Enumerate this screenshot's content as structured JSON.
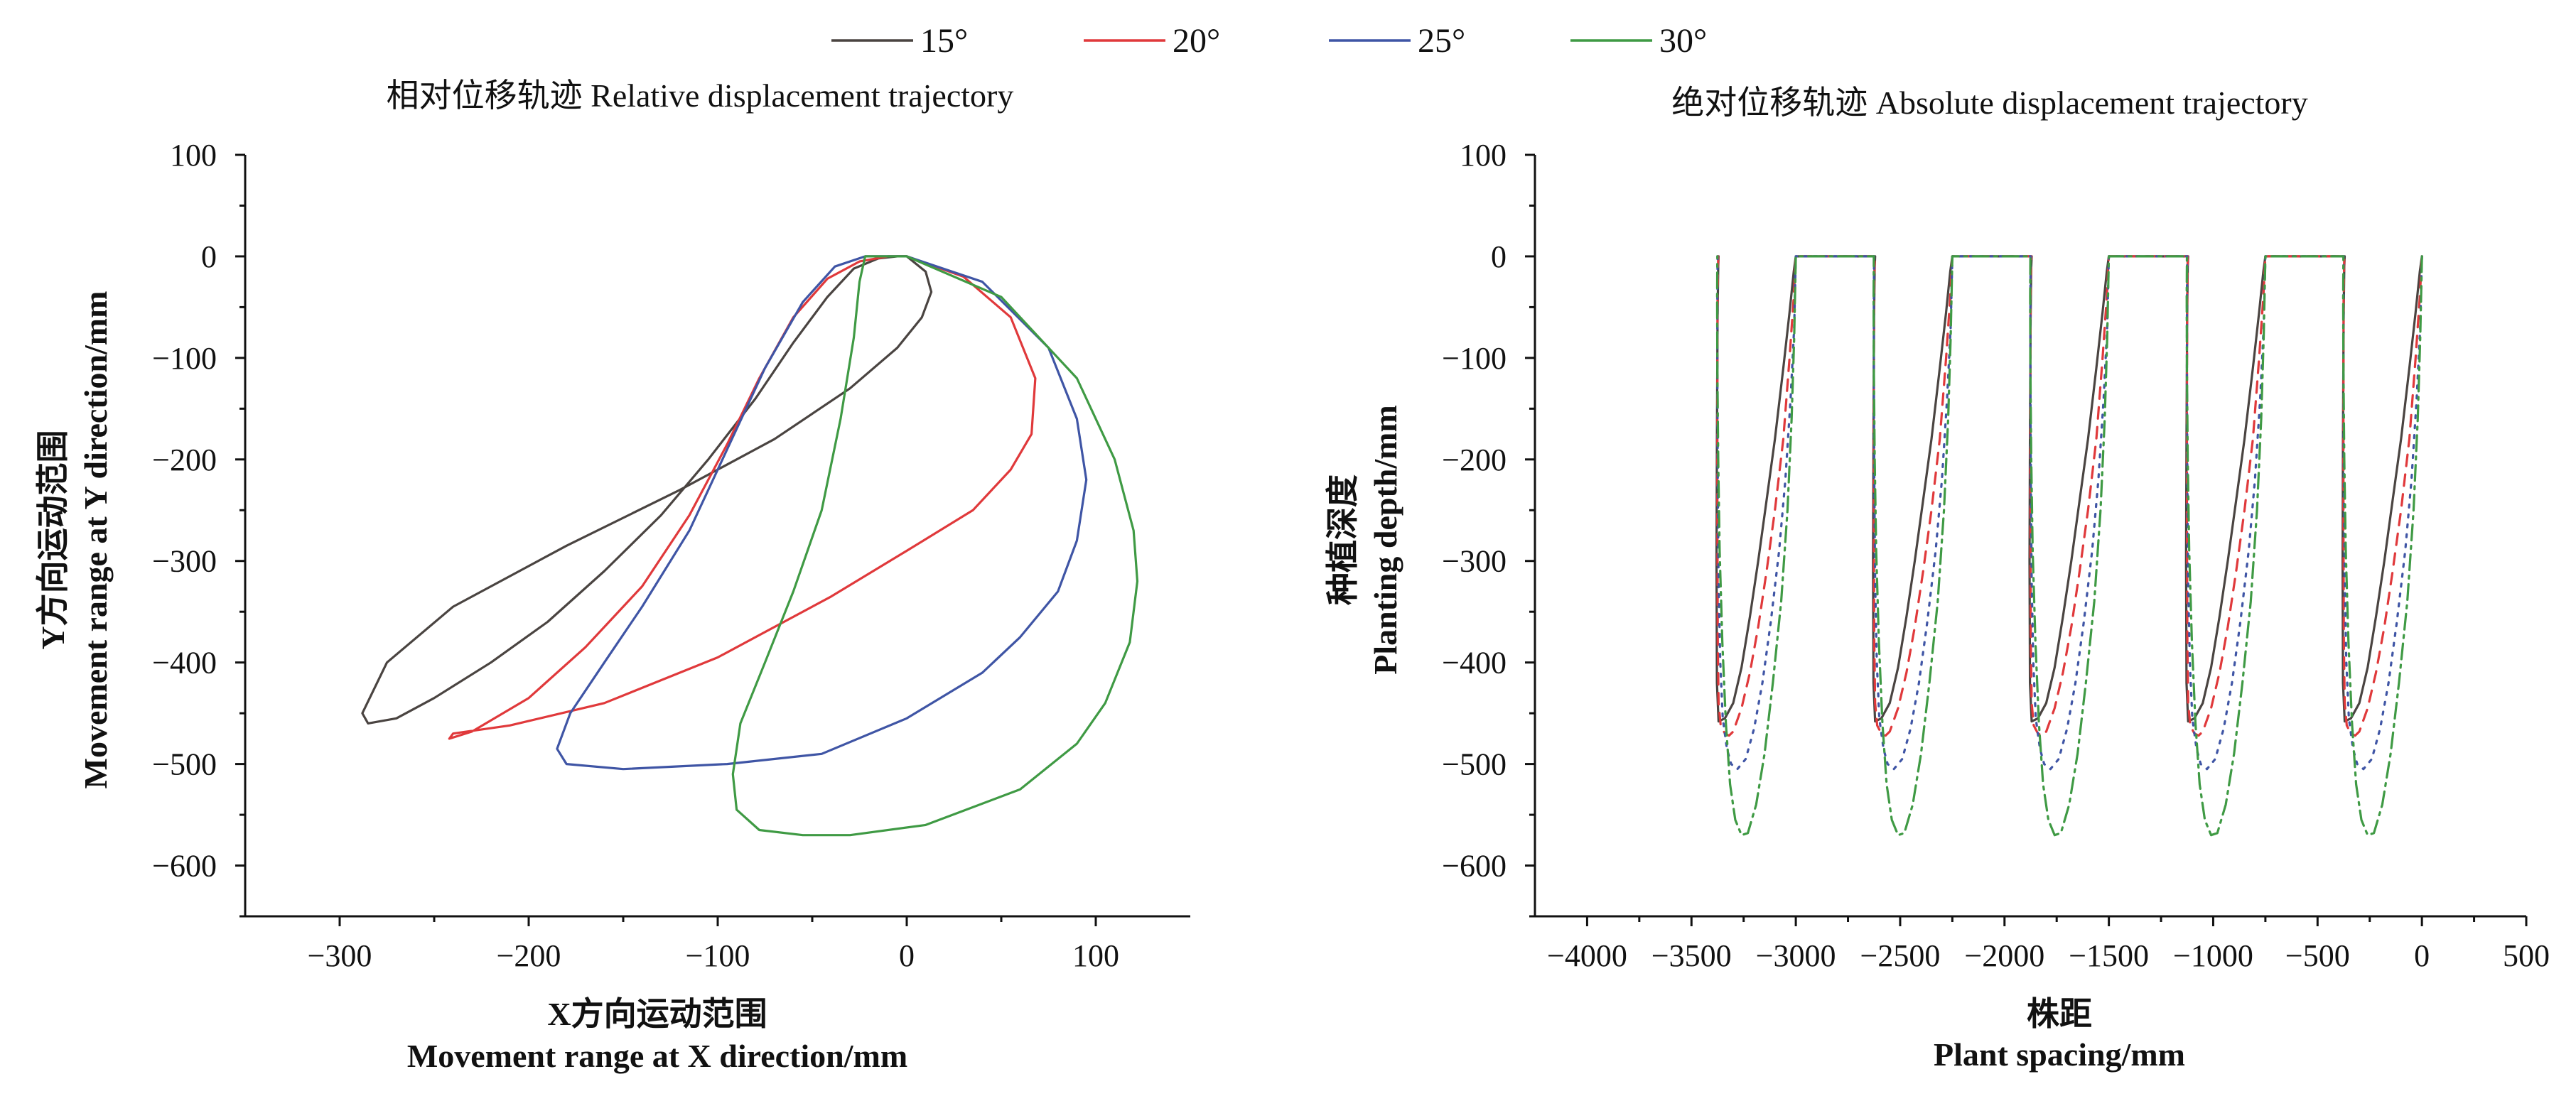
{
  "legend": [
    {
      "name": "15°",
      "color": "#4a4441"
    },
    {
      "name": "20°",
      "color": "#e0393b"
    },
    {
      "name": "25°",
      "color": "#3f55a5"
    },
    {
      "name": "30°",
      "color": "#3f9a44"
    }
  ],
  "chart_data": [
    {
      "type": "line",
      "title": "相对位移轨迹 Relative displacement trajectory",
      "xlabel_cn": "X方向运动范围",
      "xlabel_en": "Movement range at X direction/mm",
      "ylabel_cn": "Y方向运动范围",
      "ylabel_en": "Movement range at Y direction/mm",
      "xlim": [
        -350,
        150
      ],
      "ylim": [
        -650,
        100
      ],
      "xticks": [
        -300,
        -200,
        -100,
        0,
        100
      ],
      "xtick_labels": [
        "−300",
        "−200",
        "−100",
        "0",
        "100"
      ],
      "yticks": [
        100,
        0,
        -100,
        -200,
        -300,
        -400,
        -500,
        -600
      ],
      "ytick_labels": [
        "100",
        "0",
        "−100",
        "−200",
        "−300",
        "−400",
        "−500",
        "−600"
      ],
      "series": [
        {
          "name": "15°",
          "color": "#4a4441",
          "dash": "",
          "x": [
            0,
            10,
            13,
            8,
            -5,
            -30,
            -70,
            -120,
            -180,
            -240,
            -275,
            -288,
            -285,
            -270,
            -250,
            -220,
            -190,
            -160,
            -130,
            -105,
            -80,
            -60,
            -42,
            -28,
            -15,
            -5,
            0
          ],
          "y": [
            0,
            -15,
            -35,
            -60,
            -90,
            -130,
            -180,
            -230,
            -285,
            -345,
            -400,
            -450,
            -460,
            -455,
            -435,
            -400,
            -360,
            -310,
            -255,
            -200,
            -140,
            -85,
            -40,
            -12,
            -2,
            0,
            0
          ]
        },
        {
          "name": "20°",
          "color": "#e0393b",
          "dash": "",
          "x": [
            0,
            30,
            55,
            68,
            66,
            55,
            35,
            0,
            -40,
            -100,
            -160,
            -210,
            -240,
            -242,
            -230,
            -200,
            -170,
            -140,
            -115,
            -95,
            -78,
            -60,
            -42,
            -25,
            -10,
            0
          ],
          "y": [
            0,
            -20,
            -60,
            -120,
            -175,
            -210,
            -250,
            -290,
            -335,
            -395,
            -440,
            -462,
            -470,
            -475,
            -468,
            -435,
            -385,
            -325,
            -255,
            -185,
            -120,
            -60,
            -22,
            -5,
            0,
            0
          ]
        },
        {
          "name": "25°",
          "color": "#3f55a5",
          "dash": "",
          "x": [
            0,
            40,
            75,
            90,
            95,
            90,
            80,
            60,
            40,
            0,
            -45,
            -95,
            -150,
            -180,
            -185,
            -178,
            -160,
            -140,
            -115,
            -95,
            -75,
            -55,
            -38,
            -22,
            -10,
            0
          ],
          "y": [
            0,
            -25,
            -90,
            -160,
            -220,
            -280,
            -330,
            -375,
            -410,
            -455,
            -490,
            -500,
            -505,
            -500,
            -485,
            -450,
            -400,
            -345,
            -270,
            -190,
            -110,
            -45,
            -10,
            0,
            0,
            0
          ]
        },
        {
          "name": "30°",
          "color": "#3f9a44",
          "dash": "",
          "x": [
            0,
            50,
            90,
            110,
            120,
            122,
            118,
            105,
            90,
            60,
            10,
            -30,
            -55,
            -78,
            -90,
            -92,
            -88,
            -75,
            -60,
            -45,
            -35,
            -28,
            -25,
            -22,
            -15,
            -5,
            0
          ],
          "y": [
            0,
            -40,
            -120,
            -200,
            -270,
            -320,
            -380,
            -440,
            -480,
            -525,
            -560,
            -570,
            -570,
            -565,
            -545,
            -510,
            -460,
            -400,
            -330,
            -250,
            -160,
            -80,
            -25,
            0,
            0,
            0,
            0
          ]
        }
      ]
    },
    {
      "type": "line",
      "title": "绝对位移轨迹 Absolute displacement trajectory",
      "xlabel_cn": "株距",
      "xlabel_en": "Plant spacing/mm",
      "ylabel_cn": "种植深度",
      "ylabel_en": "Planting depth/mm",
      "xlim": [
        -4250,
        500
      ],
      "ylim": [
        -650,
        100
      ],
      "xticks": [
        -4000,
        -3500,
        -3000,
        -2500,
        -2000,
        -1500,
        -1000,
        -500,
        0,
        500
      ],
      "xtick_labels": [
        "−4000",
        "−3500",
        "−3000",
        "−2500",
        "−2000",
        "−1500",
        "−1000",
        "−500",
        "0",
        "500"
      ],
      "yticks": [
        100,
        0,
        -100,
        -200,
        -300,
        -400,
        -500,
        -600
      ],
      "ytick_labels": [
        "100",
        "0",
        "−100",
        "−200",
        "−300",
        "−400",
        "−500",
        "−600"
      ],
      "period": 750,
      "cycles": 5,
      "series": [
        {
          "name": "15°",
          "color": "#4a4441",
          "dash": "",
          "cycle_x": [
            0,
            -10,
            -30,
            -60,
            -100,
            -140,
            -180,
            -220,
            -260,
            -300,
            -340,
            -370,
            -378,
            -380,
            -378,
            -375,
            -372,
            -370
          ],
          "cycle_y": [
            0,
            -15,
            -55,
            -110,
            -180,
            -240,
            -300,
            -355,
            -405,
            -440,
            -455,
            -458,
            -420,
            -300,
            -180,
            -60,
            -10,
            0
          ]
        },
        {
          "name": "20°",
          "color": "#e0393b",
          "dash": "16 12",
          "cycle_x": [
            0,
            -10,
            -30,
            -60,
            -100,
            -140,
            -180,
            -220,
            -260,
            -300,
            -320,
            -340,
            -360,
            -370,
            -374,
            -376,
            -376,
            -375,
            -372
          ],
          "cycle_y": [
            0,
            -40,
            -100,
            -180,
            -250,
            -310,
            -365,
            -410,
            -445,
            -468,
            -472,
            -470,
            -462,
            -440,
            -380,
            -260,
            -140,
            -40,
            0
          ]
        },
        {
          "name": "25°",
          "color": "#3f55a5",
          "dash": "4 10",
          "cycle_x": [
            0,
            -8,
            -25,
            -50,
            -80,
            -120,
            -160,
            -200,
            -240,
            -280,
            -310,
            -330,
            -350,
            -362,
            -370,
            -374,
            -376,
            -376,
            -375
          ],
          "cycle_y": [
            0,
            -70,
            -140,
            -220,
            -290,
            -360,
            -420,
            -465,
            -495,
            -505,
            -500,
            -485,
            -455,
            -400,
            -320,
            -220,
            -120,
            -40,
            0
          ]
        },
        {
          "name": "30°",
          "color": "#3f9a44",
          "dash": "22 8 4 8",
          "cycle_x": [
            0,
            -8,
            -20,
            -40,
            -70,
            -110,
            -150,
            -190,
            -230,
            -260,
            -290,
            -315,
            -335,
            -352,
            -365,
            -372,
            -376,
            -377,
            -376
          ],
          "cycle_y": [
            0,
            -80,
            -160,
            -250,
            -340,
            -420,
            -490,
            -540,
            -568,
            -570,
            -555,
            -520,
            -460,
            -380,
            -290,
            -200,
            -110,
            -40,
            0
          ]
        }
      ]
    }
  ]
}
